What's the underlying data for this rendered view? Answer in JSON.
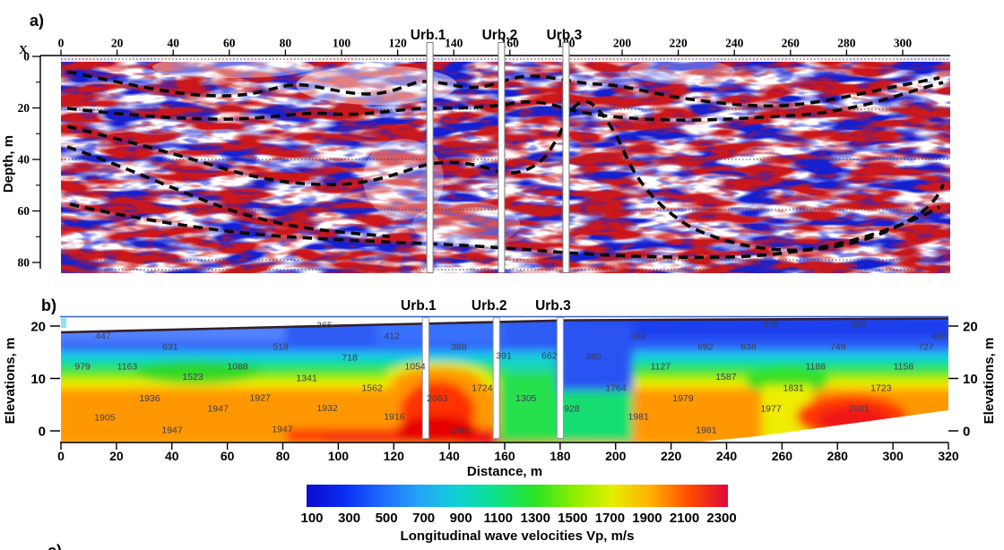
{
  "labels": {
    "panel_a": "a)",
    "panel_b": "b)",
    "panel_c": "c)"
  },
  "boreholes": [
    {
      "name": "Urb.1",
      "distance_m": 131.5
    },
    {
      "name": "Urb.2",
      "distance_m": 157
    },
    {
      "name": "Urb.3",
      "distance_m": 180
    }
  ],
  "colorbar": {
    "title": "Longitudinal wave velocities Vp, m/s",
    "ticks": [
      100,
      300,
      500,
      700,
      900,
      1100,
      1300,
      1500,
      1700,
      1900,
      2100,
      2300
    ],
    "min": 100,
    "max": 2300,
    "gradient_colors": [
      "#0a0ace",
      "#0a2ef2",
      "#1f6bff",
      "#25a6f5",
      "#0fd2d2",
      "#0ce388",
      "#2ce322",
      "#8eee00",
      "#e6ee00",
      "#ffae00",
      "#ff4a00",
      "#dd0738"
    ]
  },
  "chart_data": [
    {
      "type": "heatmap",
      "panel": "a",
      "description": "Seismic reflection depth section: red/white/blue amplitude wiggle image with dashed black interpreted horizons and three borehole columns Urb.1, Urb.2, Urb.3",
      "palette": "diverging red-white-blue seismic amplitude",
      "x_axis": {
        "label": "X",
        "ticks": [
          0,
          20,
          40,
          60,
          80,
          100,
          120,
          140,
          160,
          180,
          200,
          220,
          240,
          260,
          280,
          300
        ],
        "range": [
          0,
          317
        ]
      },
      "y_axis": {
        "label": "Depth, m",
        "major_ticks": [
          0,
          20,
          40,
          60,
          80
        ],
        "minor_ticks": [
          10,
          30,
          50,
          70
        ],
        "range": [
          0,
          84
        ]
      },
      "grid": "horizontal dotted lines every 20 m"
    },
    {
      "type": "heatmap",
      "panel": "b",
      "description": "P-wave velocity tomography model colored from blue (low Vp) to red (high Vp) with posted velocity values in m/s",
      "x_axis": {
        "label": "Distance, m",
        "ticks": [
          0,
          20,
          40,
          60,
          80,
          100,
          120,
          140,
          160,
          180,
          200,
          220,
          240,
          260,
          280,
          300,
          320
        ],
        "range": [
          0,
          320
        ]
      },
      "y_axis_left": {
        "label": "Elevations, m",
        "ticks": [
          20,
          10,
          0
        ]
      },
      "y_axis_right": {
        "label": "Elevations, m",
        "ticks": [
          20,
          10,
          0
        ]
      },
      "velocity_labels": [
        {
          "vp": 447,
          "x": 15.2,
          "elev": 18.1
        },
        {
          "vp": 631,
          "x": 39.4,
          "elev": 16.1
        },
        {
          "vp": 518,
          "x": 79.2,
          "elev": 16.1
        },
        {
          "vp": 365,
          "x": 95.0,
          "elev": 20.2
        },
        {
          "vp": 718,
          "x": 104.1,
          "elev": 14.0
        },
        {
          "vp": 979,
          "x": 7.8,
          "elev": 12.3
        },
        {
          "vp": 1163,
          "x": 23.9,
          "elev": 12.3
        },
        {
          "vp": 1088,
          "x": 63.7,
          "elev": 12.3
        },
        {
          "vp": 1523,
          "x": 47.5,
          "elev": 10.3
        },
        {
          "vp": 1341,
          "x": 88.6,
          "elev": 10.1
        },
        {
          "vp": 1936,
          "x": 32.0,
          "elev": 6.2
        },
        {
          "vp": 1927,
          "x": 71.8,
          "elev": 6.3
        },
        {
          "vp": 1947,
          "x": 56.6,
          "elev": 4.3
        },
        {
          "vp": 1932,
          "x": 96.0,
          "elev": 4.4
        },
        {
          "vp": 1905,
          "x": 15.8,
          "elev": 2.6
        },
        {
          "vp": 1947,
          "x": 40.1,
          "elev": 0.2
        },
        {
          "vp": 1947,
          "x": 79.8,
          "elev": 0.3
        },
        {
          "vp": 412,
          "x": 119.3,
          "elev": 18.1
        },
        {
          "vp": 388,
          "x": 143.5,
          "elev": 16.1
        },
        {
          "vp": 391,
          "x": 159.7,
          "elev": 14.4
        },
        {
          "vp": 662,
          "x": 176.1,
          "elev": 14.4
        },
        {
          "vp": 460,
          "x": 192.0,
          "elev": 14.2
        },
        {
          "vp": 382,
          "x": 208.2,
          "elev": 18.1
        },
        {
          "vp": 1054,
          "x": 127.7,
          "elev": 12.3
        },
        {
          "vp": 1127,
          "x": 216.2,
          "elev": 12.3
        },
        {
          "vp": 1562,
          "x": 112.2,
          "elev": 8.2
        },
        {
          "vp": 1724,
          "x": 151.9,
          "elev": 8.2
        },
        {
          "vp": 2063,
          "x": 135.7,
          "elev": 6.2
        },
        {
          "vp": 1305,
          "x": 167.7,
          "elev": 6.2
        },
        {
          "vp": 1764,
          "x": 200.1,
          "elev": 8.2
        },
        {
          "vp": 1979,
          "x": 224.3,
          "elev": 6.2
        },
        {
          "vp": 1916,
          "x": 120.2,
          "elev": 2.7
        },
        {
          "vp": 928,
          "x": 184.2,
          "elev": 4.3
        },
        {
          "vp": 1981,
          "x": 208.2,
          "elev": 2.7
        },
        {
          "vp": 1986,
          "x": 143.5,
          "elev": 0.2
        },
        {
          "vp": 378,
          "x": 256.0,
          "elev": 20.3
        },
        {
          "vp": 391,
          "x": 287.7,
          "elev": 20.3
        },
        {
          "vp": 480,
          "x": 316.7,
          "elev": 18.1
        },
        {
          "vp": 692,
          "x": 232.4,
          "elev": 16.1
        },
        {
          "vp": 638,
          "x": 247.9,
          "elev": 16.1
        },
        {
          "vp": 749,
          "x": 280.2,
          "elev": 16.1
        },
        {
          "vp": 727,
          "x": 311.9,
          "elev": 16.1
        },
        {
          "vp": 1188,
          "x": 272.1,
          "elev": 12.3
        },
        {
          "vp": 1158,
          "x": 303.8,
          "elev": 12.3
        },
        {
          "vp": 1587,
          "x": 239.8,
          "elev": 10.3
        },
        {
          "vp": 1831,
          "x": 264.1,
          "elev": 8.2
        },
        {
          "vp": 1723,
          "x": 295.7,
          "elev": 8.2
        },
        {
          "vp": 1977,
          "x": 256.0,
          "elev": 4.3
        },
        {
          "vp": 2031,
          "x": 287.7,
          "elev": 4.3
        },
        {
          "vp": 1981,
          "x": 232.7,
          "elev": 0.2
        }
      ]
    }
  ]
}
